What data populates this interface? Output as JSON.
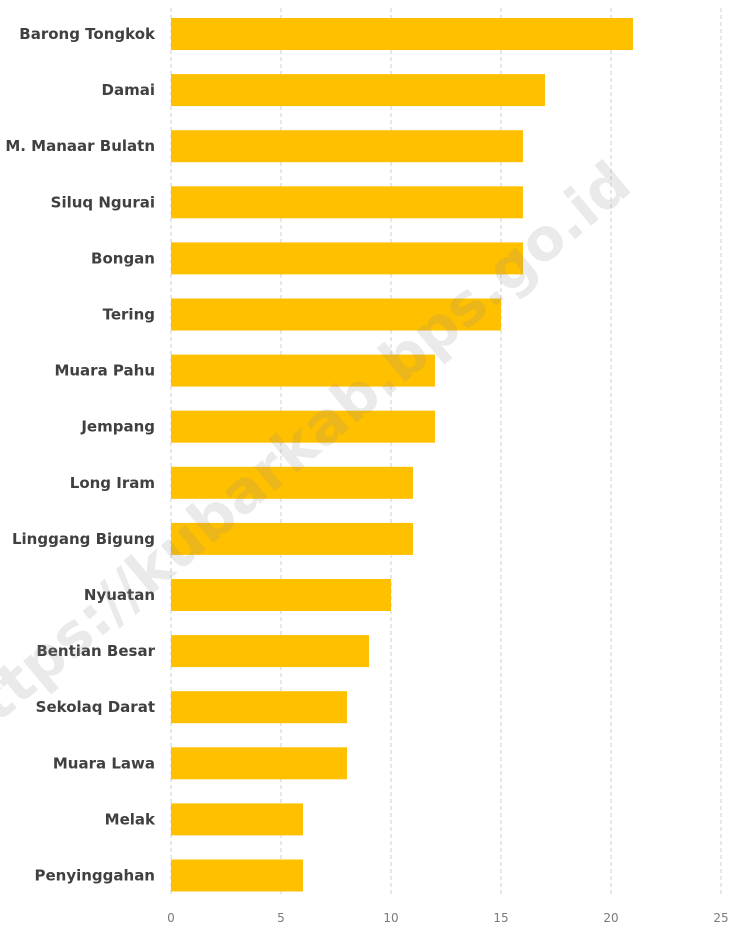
{
  "chart_data": {
    "type": "bar",
    "orientation": "horizontal",
    "categories": [
      "Barong Tongkok",
      "Damai",
      "M. Manaar Bulatn",
      "Siluq Ngurai",
      "Bongan",
      "Tering",
      "Muara Pahu",
      "Jempang",
      "Long Iram",
      "Linggang Bigung",
      "Nyuatan",
      "Bentian Besar",
      "Sekolaq Darat",
      "Muara Lawa",
      "Melak",
      "Penyinggahan"
    ],
    "values": [
      21,
      17,
      16,
      16,
      16,
      15,
      12,
      12,
      11,
      11,
      10,
      9,
      8,
      8,
      6,
      6
    ],
    "xlim": [
      0,
      25
    ],
    "x_ticks": [
      "0",
      "5",
      "10",
      "15",
      "20",
      "25"
    ],
    "grid": "vertical dashed",
    "bar_color": "#FFC000",
    "watermark": "https://kubarkab.bps.go.id"
  }
}
